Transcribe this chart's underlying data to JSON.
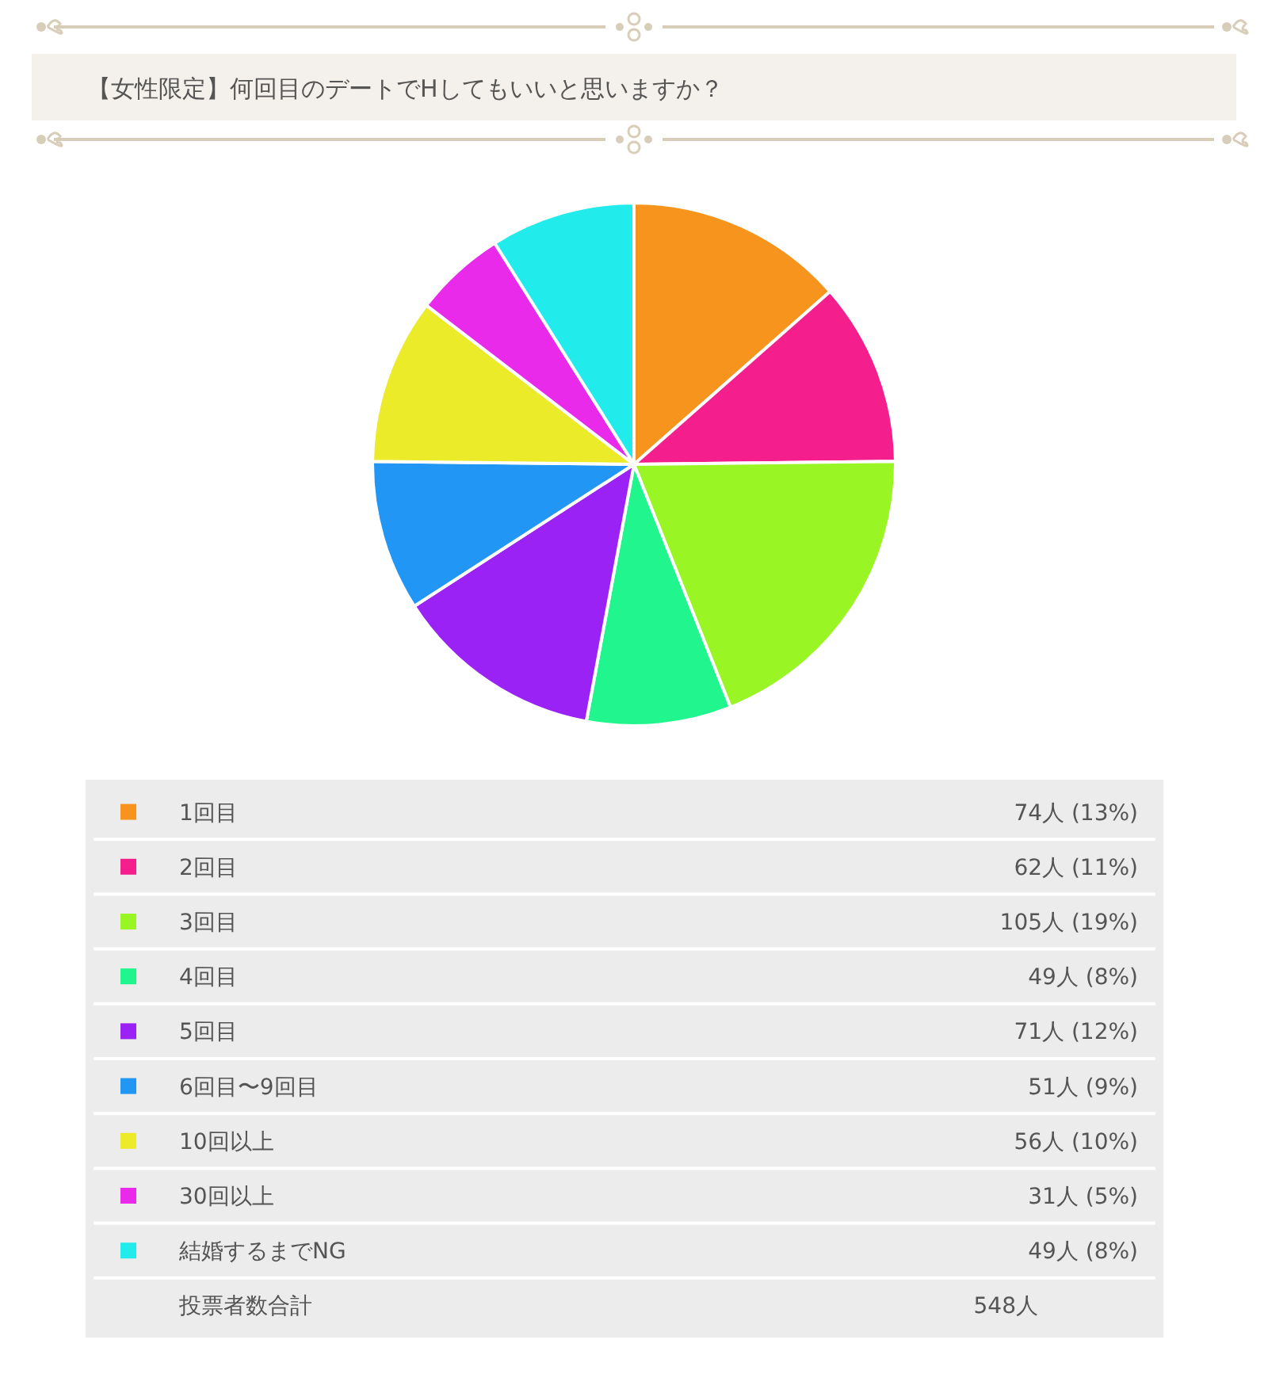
{
  "chart_data": {
    "type": "pie",
    "title": "【女性限定】何回目のデートでHしてもいいと思いますか？",
    "categories": [
      "1回目",
      "2回目",
      "3回目",
      "4回目",
      "5回目",
      "6回目〜9回目",
      "10回以上",
      "30回以上",
      "結婚するまでNG"
    ],
    "values": [
      74,
      62,
      105,
      49,
      71,
      51,
      56,
      31,
      49
    ],
    "colors": [
      "#f7941d",
      "#f41e8c",
      "#9af524",
      "#21f58e",
      "#9a22f5",
      "#2196f5",
      "#ebeb2a",
      "#ea2aea",
      "#22ebeb"
    ],
    "value_labels": [
      "74人 (13%)",
      "62人 (11%)",
      "105人 (19%)",
      "49人 (8%)",
      "71人 (12%)",
      "51人 (9%)",
      "56人 (10%)",
      "31人 (5%)",
      "49人 (8%)"
    ],
    "annotations": [
      "投票者数合計",
      "548人"
    ],
    "legend": "bottom"
  }
}
